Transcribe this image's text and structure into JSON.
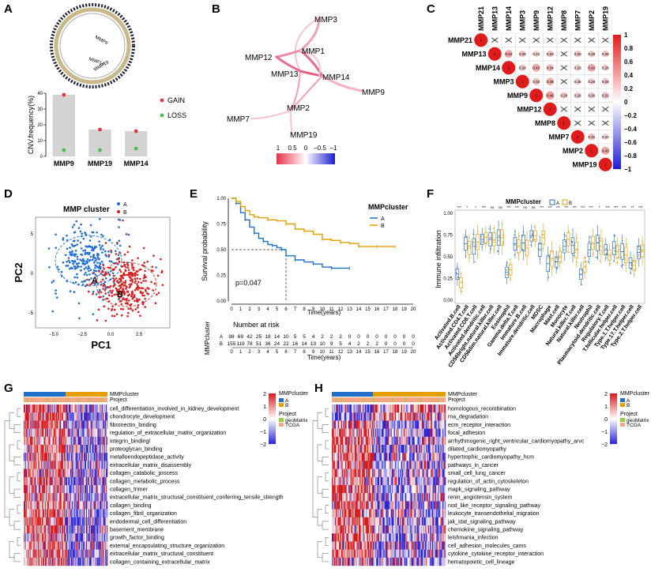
{
  "colors": {
    "gain": "#e8334a",
    "loss": "#4bbf4b",
    "bar": "#d3d3d3",
    "clusterA": "#1f6fc9",
    "clusterB": "#e69f00",
    "pcaA": "#1f6fd6",
    "pcaB": "#d92020",
    "corPos": "#e01b1b",
    "corNeg": "#1c1cd1",
    "heatHigh": "#d7191c",
    "heatLow": "#2b24d6",
    "heatMid": "#ffffff",
    "projGeo": "#9acd32",
    "projTcga": "#f4a582"
  },
  "panelA": {
    "letter": "A",
    "circos_labels": [
      "MMP9",
      "MMP14",
      "MMP19"
    ],
    "chart_data": {
      "type": "bar",
      "categories": [
        "MMP9",
        "MMP19",
        "MMP14"
      ],
      "values": [
        39,
        17,
        16
      ],
      "series": [
        {
          "name": "GAIN",
          "values": [
            39,
            17,
            16
          ]
        },
        {
          "name": "LOSS",
          "values": [
            4,
            4,
            5
          ]
        }
      ],
      "ylabel": "CNV.frequency(%)",
      "ylim": [
        0,
        40
      ],
      "yticks": [
        "0",
        "10",
        "20",
        "30",
        "40"
      ],
      "legend": [
        "GAIN",
        "LOSS"
      ]
    }
  },
  "panelB": {
    "letter": "B",
    "nodes": [
      "MMP3",
      "MMP1",
      "MMP12",
      "MMP13",
      "MMP14",
      "MMP9",
      "MMP2",
      "MMP7",
      "MMP19"
    ],
    "legend_ticks": [
      "1",
      "0.5",
      "0",
      "−0.5",
      "−1"
    ]
  },
  "panelC": {
    "letter": "C",
    "genes": [
      "MMP21",
      "MMP13",
      "MMP14",
      "MMP3",
      "MMP9",
      "MMP12",
      "MMP8",
      "MMP7",
      "MMP2",
      "MMP19"
    ],
    "colorbar_ticks": [
      "1",
      "0.8",
      "0.6",
      "0.4",
      "0.2",
      "0",
      "−0.2",
      "−0.4",
      "−0.6",
      "−0.8",
      "−1"
    ],
    "matrix": [
      [
        "1",
        "x",
        "x",
        "x",
        "x",
        "x",
        "x",
        "x",
        "x",
        "x"
      ],
      [
        "",
        "1",
        "0.42",
        "0.29",
        "0.24",
        "0.29",
        "x",
        "0.29",
        "0.28",
        "0.29"
      ],
      [
        "",
        "",
        "1",
        "0.28",
        "0.42",
        "0.34",
        "x",
        "0.26",
        "0.42",
        "0.26"
      ],
      [
        "",
        "",
        "",
        "1",
        "0.32",
        "0.39",
        "x",
        "0.26",
        "0.28",
        "0.29"
      ],
      [
        "",
        "",
        "",
        "",
        "1",
        "0.46",
        "0.28",
        "0.26",
        "0.26",
        "0.31"
      ],
      [
        "",
        "",
        "",
        "",
        "",
        "1",
        "x",
        "x",
        "x",
        "x"
      ],
      [
        "",
        "",
        "",
        "",
        "",
        "",
        "1",
        "x",
        "x",
        "x"
      ],
      [
        "",
        "",
        "",
        "",
        "",
        "",
        "",
        "1",
        "0.31",
        "0.22"
      ],
      [
        "",
        "",
        "",
        "",
        "",
        "",
        "",
        "",
        "1",
        "0.43"
      ],
      [
        "",
        "",
        "",
        "",
        "",
        "",
        "",
        "",
        "",
        "1"
      ]
    ]
  },
  "panelD": {
    "letter": "D",
    "title": "MMP cluster",
    "legend": [
      "A",
      "B"
    ],
    "xlabel": "PC1",
    "ylabel": "PC2",
    "xticks": [
      "−5.0",
      "−2.5",
      "0.0",
      "2.5"
    ],
    "yticks": [
      "−5",
      "0",
      "5"
    ],
    "centroids": [
      "A",
      "B"
    ]
  },
  "panelE": {
    "letter": "E",
    "legend_title": "MMPcluster",
    "legend": [
      "A",
      "B"
    ],
    "ylabel": "Survival probability",
    "xlabel": "Time(years)",
    "pvalue": "p=0.047",
    "yticks": [
      "0.00",
      "0.25",
      "0.50",
      "0.75",
      "1.00"
    ],
    "xticks": [
      "0",
      "1",
      "2",
      "3",
      "4",
      "5",
      "6",
      "7",
      "8",
      "9",
      "10",
      "11",
      "12",
      "13",
      "14",
      "15",
      "16",
      "17",
      "18",
      "19",
      "20"
    ],
    "risk_title": "Number at risk",
    "risk_ylabel": "MMPcluster",
    "risk_A": [
      "98",
      "69",
      "42",
      "25",
      "18",
      "14",
      "10",
      "5",
      "5",
      "4",
      "2",
      "2",
      "2",
      "0",
      "0",
      "0",
      "0",
      "0",
      "0",
      "0",
      "0"
    ],
    "risk_B": [
      "155",
      "119",
      "78",
      "51",
      "36",
      "24",
      "22",
      "16",
      "14",
      "13",
      "10",
      "9",
      "5",
      "4",
      "2",
      "2",
      "2",
      "0",
      "0",
      "0",
      "0"
    ],
    "chart_data": {
      "type": "line",
      "title": "",
      "xlabel": "Time(years)",
      "ylabel": "Survival probability",
      "xlim": [
        0,
        20
      ],
      "ylim": [
        0,
        1
      ],
      "series": [
        {
          "name": "A",
          "x": [
            0,
            0.5,
            1,
            1.5,
            2,
            2.5,
            3,
            3.5,
            4,
            4.5,
            5,
            5.5,
            6,
            7,
            8,
            9,
            10,
            11,
            12,
            13
          ],
          "y": [
            1,
            0.95,
            0.86,
            0.79,
            0.72,
            0.66,
            0.61,
            0.58,
            0.55,
            0.54,
            0.52,
            0.5,
            0.44,
            0.4,
            0.38,
            0.36,
            0.33,
            0.32,
            0.32,
            0.32
          ]
        },
        {
          "name": "B",
          "x": [
            0,
            0.5,
            1,
            1.5,
            2,
            2.5,
            3,
            4,
            5,
            6,
            7,
            8,
            9,
            10,
            11,
            12,
            13,
            14,
            15,
            16,
            17,
            18
          ],
          "y": [
            1,
            0.97,
            0.92,
            0.88,
            0.84,
            0.82,
            0.81,
            0.79,
            0.78,
            0.75,
            0.7,
            0.68,
            0.65,
            0.6,
            0.59,
            0.57,
            0.56,
            0.53,
            0.53,
            0.53,
            0.53,
            0.53
          ]
        }
      ]
    }
  },
  "panelF": {
    "letter": "F",
    "legend_title": "MMPcluster",
    "legend": [
      "A",
      "B"
    ],
    "ylabel": "Immune infiltration",
    "yticks": [
      "0.00",
      "0.25",
      "0.50",
      "0.75",
      "1.00"
    ],
    "cells": [
      "Activated.B.cell",
      "Activated.CD4.T.cell",
      "Activated.CD8.T.cell",
      "Activated.dendritic.cell",
      "CD56bright.natural.killer.cell",
      "CD56dim.natural.killer.cell",
      "Eosinophil",
      "Gamma.delta.T.cell",
      "Immature.B.cell",
      "Immature.dendritic.cell",
      "MDSC",
      "Macrophage",
      "Mast.cell",
      "Monocyte",
      "Natural.killer.T.cell",
      "Natural.killer.cell",
      "Neutrophil",
      "Plasmacytoid.dendritic.cell",
      "Regulatory.T.cell",
      "T.follicular.helper.cell",
      "Type.1.T.helper.cell",
      "Type.17.T.helper.cell",
      "Type.2.T.helper.cell"
    ],
    "signif": [
      "***",
      "*",
      "*",
      "***",
      "ns",
      "ns",
      "***",
      "***",
      "ns",
      "ns",
      "***",
      "***",
      "***",
      "***",
      "***",
      "***",
      "***",
      "*",
      "***",
      "***",
      "***",
      "**",
      "***"
    ],
    "chart_data": {
      "type": "box",
      "categories": [
        "Activated.B.cell",
        "Activated.CD4.T.cell",
        "Activated.CD8.T.cell",
        "Activated.dendritic.cell",
        "CD56bright.natural.killer.cell",
        "CD56dim.natural.killer.cell",
        "Eosinophil",
        "Gamma.delta.T.cell",
        "Immature.B.cell",
        "Immature.dendritic.cell",
        "MDSC",
        "Macrophage",
        "Mast.cell",
        "Monocyte",
        "Natural.killer.T.cell",
        "Natural.killer.cell",
        "Neutrophil",
        "Plasmacytoid.dendritic.cell",
        "Regulatory.T.cell",
        "T.follicular.helper.cell",
        "Type.1.T.helper.cell",
        "Type.17.T.helper.cell",
        "Type.2.T.helper.cell"
      ],
      "series": [
        {
          "name": "A",
          "medians": [
            0.3,
            0.65,
            0.62,
            0.7,
            0.7,
            0.72,
            0.32,
            0.65,
            0.66,
            0.74,
            0.58,
            0.42,
            0.44,
            0.62,
            0.63,
            0.3,
            0.58,
            0.66,
            0.58,
            0.6,
            0.56,
            0.43,
            0.55
          ]
        },
        {
          "name": "B",
          "medians": [
            0.2,
            0.6,
            0.67,
            0.72,
            0.7,
            0.72,
            0.35,
            0.62,
            0.6,
            0.74,
            0.72,
            0.48,
            0.5,
            0.7,
            0.58,
            0.38,
            0.66,
            0.62,
            0.52,
            0.56,
            0.52,
            0.4,
            0.57
          ]
        }
      ],
      "ylabel": "Immune infiltration",
      "ylim": [
        0,
        1
      ]
    }
  },
  "panelG": {
    "letter": "G",
    "ann_labels": [
      "MMPcluster",
      "Project"
    ],
    "legend_cluster_title": "MMPcluster",
    "legend_project_title": "Project",
    "cluster_levels": [
      "A",
      "B"
    ],
    "project_levels": [
      "geoMatrix",
      "TCGA"
    ],
    "scale_ticks": [
      "2",
      "1",
      "0",
      "−1",
      "−2"
    ],
    "rows": [
      "cell_differentiation_involved_in_kidney_development",
      "chondrocyte_development",
      "fibronectin_binding",
      "regulation_of_extracellular_matrix_organization",
      "integrin_bindingl",
      "proteoglycan_binding",
      "metalloendopeptidase_activity",
      "extracellular_matrix_disassembly",
      "collagen_catabolic_process",
      "collagen_metabolic_process",
      "collagen_trimer",
      "extracellular_matrix_structural_constituent_conferring_tensile_strength",
      "collagen_binding",
      "collagen_fibril_organization",
      "endodermal_cell_differentiation",
      "basement_membrane",
      "growth_factor_binding",
      "external_encapsulating_structure_organization",
      "extracellular_matrix_structural_constituent",
      "collagen_containing_extracellular_matrix"
    ]
  },
  "panelH": {
    "letter": "H",
    "ann_labels": [
      "MMPcluster",
      "Project"
    ],
    "legend_cluster_title": "MMPcluster",
    "legend_project_title": "Project",
    "cluster_levels": [
      "A",
      "B"
    ],
    "project_levels": [
      "geoMatrix",
      "TCGA"
    ],
    "scale_ticks": [
      "2",
      "1",
      "0",
      "−1",
      "−2"
    ],
    "rows": [
      "homologous_recombination",
      "rna_degradation",
      "ecm_receptor_interaction",
      "focal_adhesion",
      "arrhythmogenic_right_ventricular_cardiomyopathy_arvc",
      "dilated_cardiomyopathy",
      "hypertrophic_cardiomyopathy_hcm",
      "pathways_in_cancer",
      "small_cell_lung_cancer",
      "regulation_of_actin_cytoskeleton",
      "mapk_signaling_pathway",
      "renin_angiotensin_system",
      "nod_like_receptor_signaling_pathway",
      "leukocyte_transendothelial_migration",
      "jak_stat_signaling_pathway",
      "chemokine_signaling_pathway",
      "leishmania_infection",
      "cell_adhesion_molecules_cams",
      "cytokine_cytokine_receptor_interaction",
      "hematopoietic_cell_lineage"
    ]
  }
}
